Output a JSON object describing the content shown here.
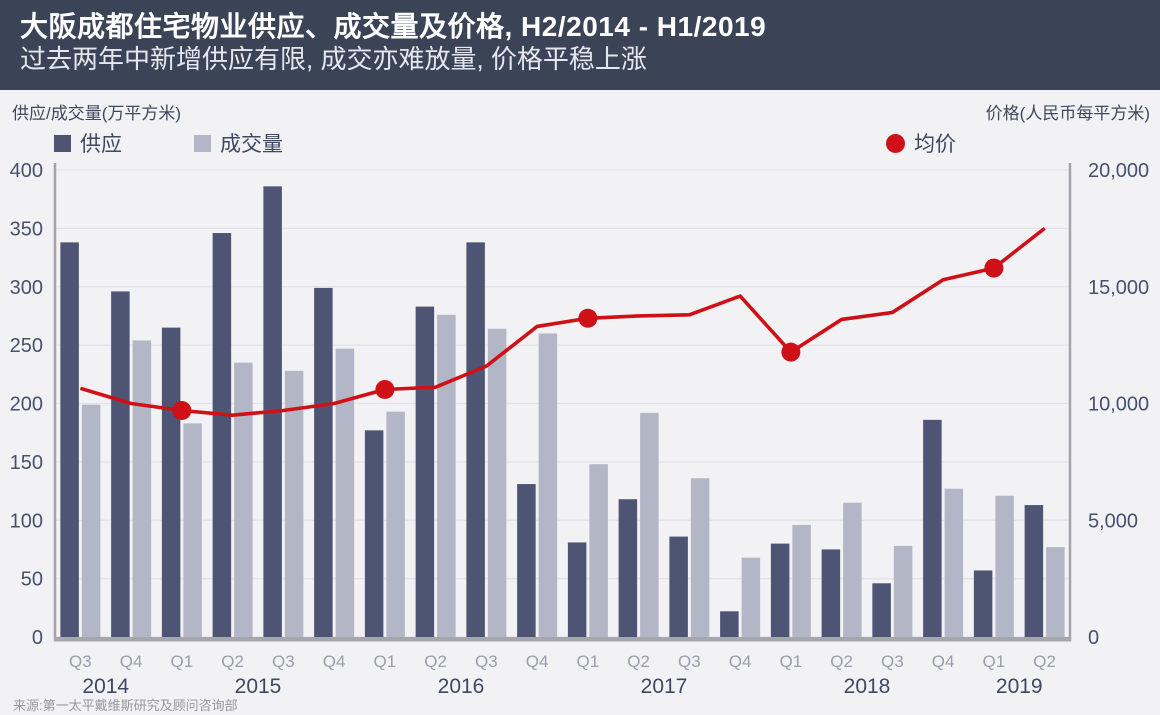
{
  "header": {
    "title": "大阪成都住宅物业供应、成交量及价格, H2/2014 - H1/2019",
    "subtitle": "过去两年中新增供应有限, 成交亦难放量, 价格平稳上涨"
  },
  "legend": [
    {
      "label": "供应",
      "marker": "square",
      "color": "#4d5474"
    },
    {
      "label": "成交量",
      "marker": "square",
      "color": "#b3b6c6"
    },
    {
      "label": "均价",
      "marker": "circle",
      "color": "#cf1117"
    }
  ],
  "source": "来源:第一太平戴维斯研究及顾问咨询部",
  "colors": {
    "header_bg": "#3b4357",
    "page_bg": "#f2f2f4",
    "gridline": "#e2e2e7",
    "axis_line": "#a2a3ab",
    "supply_bar": "#4d5474",
    "transactions_bar": "#b3b6c6",
    "price_line": "#cf1117",
    "tick_text": "#47516f",
    "quarter_text": "#9a9eac",
    "year_text": "#3d4963"
  },
  "chart_data": {
    "type": "bar+line",
    "title": "大阪成都住宅物业供应、成交量及价格, H2/2014 - H1/2019",
    "subtitle": "过去两年中新增供应有限, 成交亦难放量, 价格平稳上涨",
    "grid": true,
    "legend_position": "top",
    "categories": [
      "Q3",
      "Q4",
      "Q1",
      "Q2",
      "Q3",
      "Q4",
      "Q1",
      "Q2",
      "Q3",
      "Q4",
      "Q1",
      "Q2",
      "Q3",
      "Q4",
      "Q1",
      "Q2",
      "Q3",
      "Q4",
      "Q1",
      "Q2"
    ],
    "years": [
      {
        "label": "2014",
        "from": 0,
        "to": 1
      },
      {
        "label": "2015",
        "from": 2,
        "to": 5
      },
      {
        "label": "2016",
        "from": 6,
        "to": 9
      },
      {
        "label": "2017",
        "from": 10,
        "to": 13
      },
      {
        "label": "2018",
        "from": 14,
        "to": 17
      },
      {
        "label": "2019",
        "from": 18,
        "to": 19
      }
    ],
    "left_axis": {
      "label": "供应/成交量(万平方米)",
      "min": 0,
      "max": 400,
      "step": 50,
      "ticks": [
        400,
        350,
        300,
        250,
        200,
        150,
        100,
        50,
        0
      ]
    },
    "right_axis": {
      "label": "价格(人民币每平方米)",
      "min": 0,
      "max": 20000,
      "step": 5000,
      "ticks": [
        "20,000",
        "15,000",
        "10,000",
        "5,000",
        "0"
      ]
    },
    "series": [
      {
        "name": "供应",
        "type": "bar",
        "axis": "left",
        "color": "#4d5474",
        "values": [
          338,
          296,
          265,
          346,
          386,
          299,
          177,
          283,
          338,
          131,
          81,
          118,
          86,
          22,
          80,
          75,
          46,
          186,
          57,
          113
        ]
      },
      {
        "name": "成交量",
        "type": "bar",
        "axis": "left",
        "color": "#b3b6c6",
        "values": [
          199,
          254,
          183,
          235,
          228,
          247,
          193,
          276,
          264,
          260,
          148,
          192,
          136,
          68,
          96,
          115,
          78,
          127,
          121,
          77
        ]
      },
      {
        "name": "均价",
        "type": "line",
        "axis": "right",
        "color": "#cf1117",
        "markers_on": "Q1",
        "values": [
          10650,
          10000,
          9700,
          9500,
          9700,
          10000,
          10600,
          10700,
          11600,
          13300,
          13650,
          13750,
          13800,
          14600,
          12200,
          13600,
          13900,
          15300,
          15800,
          17500
        ]
      }
    ]
  }
}
